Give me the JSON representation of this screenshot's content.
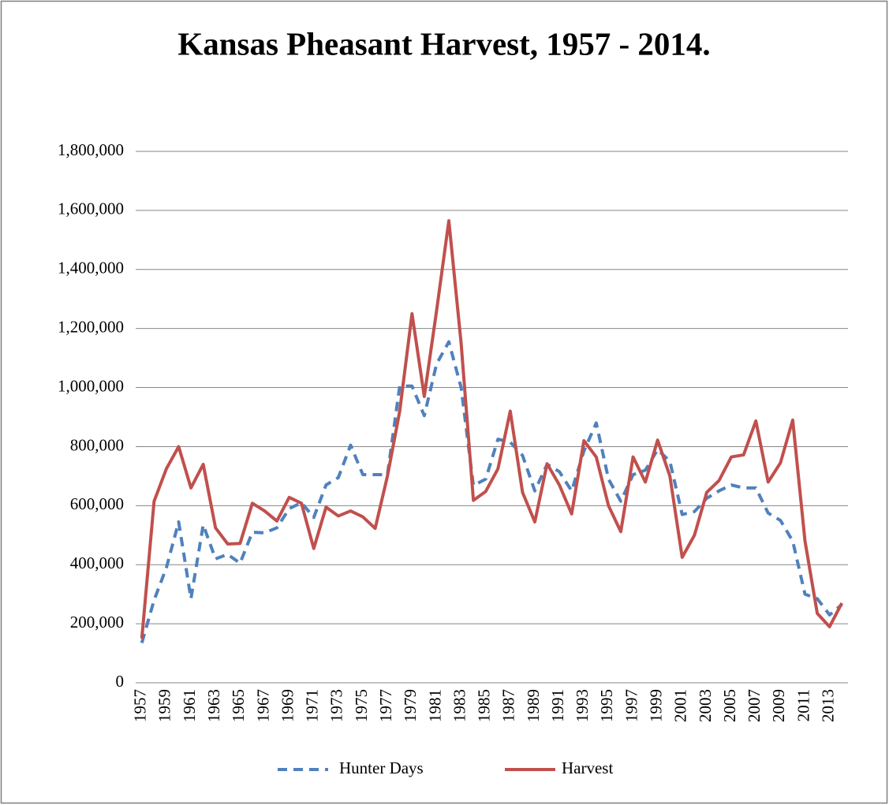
{
  "chart_data": {
    "type": "line",
    "title": "Kansas Pheasant Harvest, 1957 - 2014.",
    "categories": [
      "1957",
      null,
      "1959",
      null,
      "1961",
      null,
      "1963",
      null,
      "1965",
      null,
      "1967",
      null,
      "1969",
      null,
      "1971",
      null,
      "1973",
      null,
      "1975",
      null,
      "1977",
      null,
      "1979",
      null,
      "1981",
      null,
      "1983",
      null,
      "1985",
      null,
      "1987",
      null,
      "1989",
      null,
      "1991",
      null,
      "1993",
      null,
      "1995",
      null,
      "1997",
      null,
      "1999",
      null,
      "2001",
      null,
      "2003",
      null,
      "2005",
      null,
      "2007",
      null,
      "2009",
      null,
      "2011",
      null,
      "2013",
      null
    ],
    "series": [
      {
        "name": "Hunter Days",
        "color": "#4f81bd",
        "line_style": "dashed",
        "values": [
          135000,
          280000,
          390000,
          545000,
          285000,
          535000,
          420000,
          435000,
          405000,
          510000,
          508000,
          525000,
          590000,
          610000,
          560000,
          670000,
          695000,
          805000,
          705000,
          705000,
          705000,
          1005000,
          1005000,
          905000,
          1080000,
          1155000,
          1000000,
          668000,
          690000,
          825000,
          815000,
          770000,
          650000,
          740000,
          715000,
          650000,
          785000,
          880000,
          690000,
          615000,
          705000,
          720000,
          790000,
          750000,
          570000,
          580000,
          625000,
          650000,
          670000,
          660000,
          660000,
          575000,
          550000,
          480000,
          300000,
          285000,
          230000,
          265000
        ]
      },
      {
        "name": "Harvest",
        "color": "#c0504d",
        "line_style": "solid",
        "values": [
          150000,
          615000,
          725000,
          800000,
          660000,
          740000,
          525000,
          470000,
          472000,
          608000,
          582000,
          548000,
          628000,
          608000,
          455000,
          595000,
          565000,
          582000,
          562000,
          523000,
          700000,
          920000,
          1250000,
          970000,
          1260000,
          1565000,
          1150000,
          618000,
          648000,
          725000,
          920000,
          645000,
          545000,
          742000,
          670000,
          572000,
          820000,
          765000,
          600000,
          512000,
          765000,
          680000,
          822000,
          700000,
          425000,
          500000,
          645000,
          685000,
          765000,
          772000,
          887000,
          680000,
          745000,
          890000,
          480000,
          235000,
          190000,
          270000
        ]
      }
    ],
    "ylim": [
      0,
      1800000
    ],
    "yticks": [
      0,
      {
        "value": 200000,
        "label": "200,000"
      },
      {
        "value": 400000,
        "label": "400,000"
      },
      {
        "value": 600000,
        "label": "600,000"
      },
      {
        "value": 800000,
        "label": "800,000"
      },
      {
        "value": 1000000,
        "label": "1,000,000"
      },
      {
        "value": 1200000,
        "label": "1,200,000"
      },
      {
        "value": 1400000,
        "label": "1,400,000"
      },
      {
        "value": 1600000,
        "label": "1,600,000"
      },
      {
        "value": 1800000,
        "label": "1,800,000"
      }
    ],
    "grid": true,
    "legend": "bottom"
  }
}
